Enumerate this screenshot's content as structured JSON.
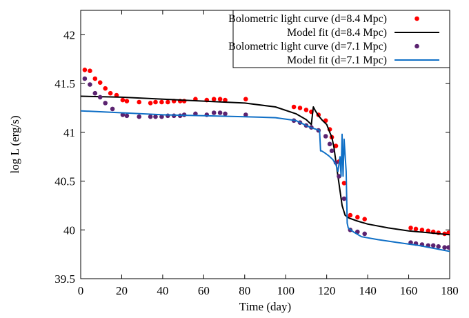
{
  "chart_data": {
    "type": "scatter",
    "title": "",
    "xlabel": "Time (day)",
    "ylabel": "log L (erg/s)",
    "xlim": [
      0,
      180
    ],
    "ylim": [
      39.5,
      42.25
    ],
    "xticks": [
      0,
      20,
      40,
      60,
      80,
      100,
      120,
      140,
      160,
      180
    ],
    "yticks": [
      39.5,
      40,
      40.5,
      41,
      41.5,
      42
    ],
    "xtick_labels": [
      "0",
      "20",
      "40",
      "60",
      "80",
      "100",
      "120",
      "140",
      "160",
      "180"
    ],
    "ytick_labels": [
      "39.5",
      "40",
      "40.5",
      "41",
      "41.5",
      "42"
    ],
    "grid": false,
    "legend_position": "top-right",
    "series": [
      {
        "name": "Bolometric light curve (d=8.4 Mpc)",
        "kind": "points",
        "color": "#ff0000",
        "x": [
          2,
          4.5,
          7,
          9.5,
          12,
          14.5,
          17.5,
          20.5,
          22.5,
          28.5,
          34,
          36.5,
          39.5,
          42.5,
          45.5,
          48.5,
          50.5,
          56,
          61.5,
          65,
          68,
          70.5,
          80.5,
          104,
          107,
          110,
          112.5,
          116,
          119.5,
          121.5,
          122.5,
          124.5,
          126,
          128.5,
          131.5,
          135,
          138.5,
          161,
          163.5,
          166.5,
          169.5,
          172,
          174.5,
          177.5,
          179.5
        ],
        "y": [
          41.64,
          41.63,
          41.55,
          41.51,
          41.45,
          41.4,
          41.38,
          41.33,
          41.32,
          41.31,
          41.3,
          41.31,
          41.31,
          41.31,
          41.32,
          41.32,
          41.32,
          41.34,
          41.33,
          41.34,
          41.34,
          41.33,
          41.34,
          41.26,
          41.25,
          41.23,
          41.21,
          41.18,
          41.12,
          41.03,
          40.95,
          40.86,
          40.7,
          40.48,
          40.15,
          40.13,
          40.11,
          40.02,
          40.01,
          40.0,
          39.99,
          39.98,
          39.97,
          39.96,
          39.97
        ]
      },
      {
        "name": "Model fit (d=8.4 Mpc)",
        "kind": "line",
        "color": "#000000",
        "x": [
          0,
          20,
          40,
          60,
          80,
          95,
          105,
          110,
          112.5,
          113.5,
          114.5,
          116,
          118,
          120,
          121.5,
          122.5,
          123.5,
          124.5,
          125.5,
          126.5,
          127.5,
          129,
          131,
          135,
          140,
          150,
          160,
          170,
          180
        ],
        "y": [
          41.37,
          41.36,
          41.34,
          41.32,
          41.3,
          41.26,
          41.19,
          41.13,
          41.08,
          41.26,
          41.22,
          41.17,
          41.12,
          41.08,
          41.0,
          40.95,
          40.85,
          40.7,
          40.55,
          40.4,
          40.25,
          40.15,
          40.12,
          40.09,
          40.06,
          40.02,
          39.99,
          39.97,
          39.95
        ]
      },
      {
        "name": "Bolometric light curve (d=7.1 Mpc)",
        "kind": "points",
        "color": "#5b2370",
        "x": [
          2,
          4.5,
          7,
          9.5,
          12,
          15.5,
          20.5,
          22.5,
          28.5,
          34,
          36.5,
          39.5,
          42.5,
          45.5,
          48.5,
          50.5,
          56,
          61.5,
          65,
          68,
          70.5,
          80.5,
          104,
          107,
          110,
          112.5,
          116,
          119.5,
          121.5,
          122.5,
          124.5,
          126,
          128.5,
          131.5,
          135,
          138.5,
          161,
          163.5,
          166.5,
          169.5,
          172,
          174.5,
          177.5,
          179.5
        ],
        "y": [
          41.55,
          41.49,
          41.4,
          41.36,
          41.3,
          41.24,
          41.18,
          41.17,
          41.16,
          41.16,
          41.16,
          41.16,
          41.17,
          41.17,
          41.17,
          41.18,
          41.19,
          41.18,
          41.2,
          41.2,
          41.19,
          41.18,
          41.12,
          41.1,
          41.07,
          41.05,
          41.02,
          40.96,
          40.88,
          40.81,
          40.69,
          40.55,
          40.32,
          40.0,
          39.98,
          39.96,
          39.87,
          39.86,
          39.85,
          39.84,
          39.84,
          39.83,
          39.82,
          39.82
        ]
      },
      {
        "name": "Model fit (d=7.1 Mpc)",
        "kind": "line",
        "color": "#0f6fc6",
        "x": [
          0,
          20,
          40,
          60,
          80,
          95,
          105,
          112,
          115,
          116.5,
          117,
          117.5,
          119,
          121,
          123,
          124.5,
          125.5,
          126.5,
          127,
          127.5,
          128,
          128.5,
          129.5,
          130,
          130.5,
          133,
          137,
          145,
          155,
          165,
          175,
          180
        ],
        "y": [
          41.22,
          41.2,
          41.18,
          41.17,
          41.16,
          41.15,
          41.12,
          41.05,
          41.03,
          41.02,
          40.81,
          40.81,
          40.79,
          40.76,
          40.72,
          40.67,
          40.6,
          40.75,
          40.55,
          40.98,
          40.55,
          40.93,
          40.6,
          40.07,
          40.02,
          39.98,
          39.93,
          39.9,
          39.87,
          39.84,
          39.8,
          39.78
        ]
      }
    ]
  }
}
